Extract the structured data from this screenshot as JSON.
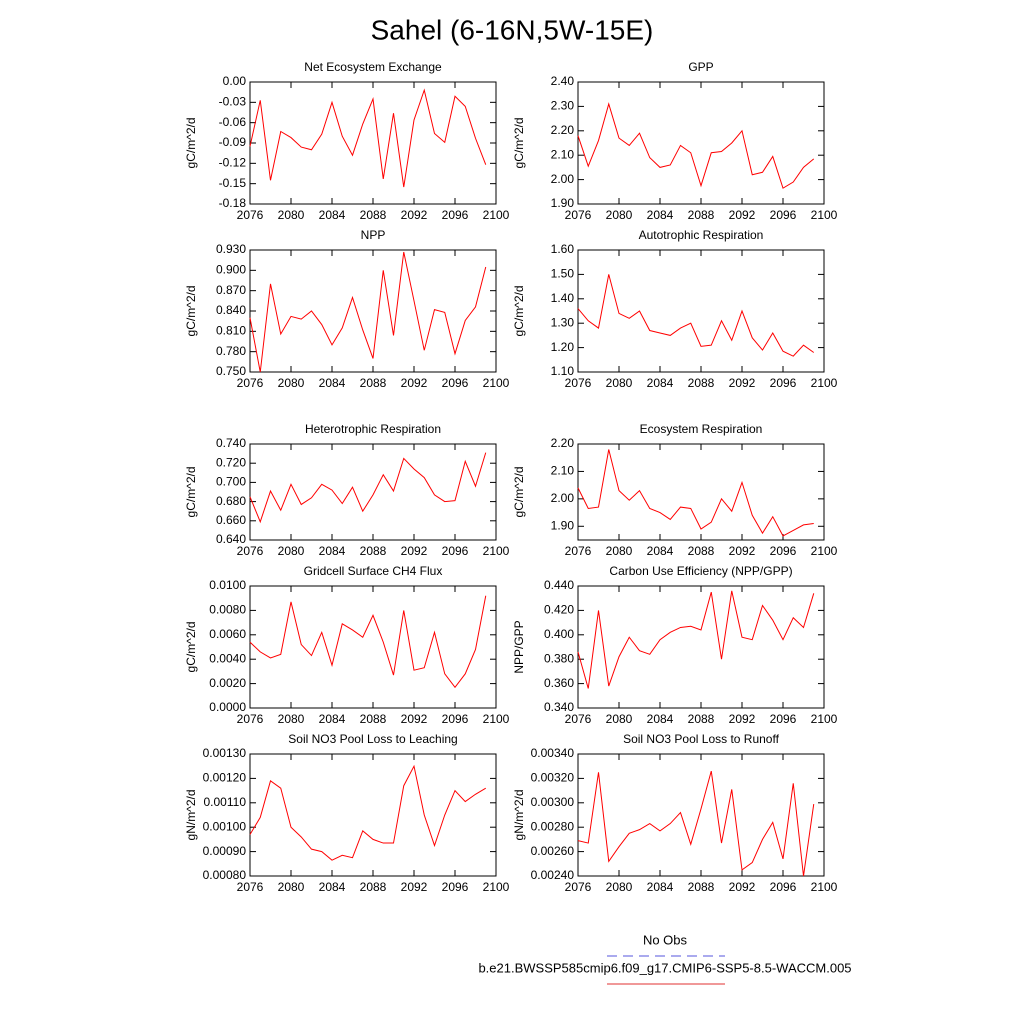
{
  "title": "Sahel (6-16N,5W-15E)",
  "legend": [
    {
      "name": "No Obs",
      "color": "#5555dd",
      "dash": true
    },
    {
      "name": "b.e21.BWSSP585cmip6.f09_g17.CMIP6-SSP5-8.5-WACCM.005",
      "color": "#e03030",
      "dash": false
    }
  ],
  "chart_data": [
    {
      "type": "line",
      "title": "Net Ecosystem Exchange",
      "ylabel": "gC/m^2/d",
      "color": "#ff0000",
      "x": [
        2076,
        2077,
        2078,
        2079,
        2080,
        2081,
        2082,
        2083,
        2084,
        2085,
        2086,
        2087,
        2088,
        2089,
        2090,
        2091,
        2092,
        2093,
        2094,
        2095,
        2096,
        2097,
        2098,
        2099
      ],
      "values": [
        -0.095,
        -0.027,
        -0.145,
        -0.073,
        -0.082,
        -0.096,
        -0.1,
        -0.077,
        -0.03,
        -0.08,
        -0.108,
        -0.062,
        -0.025,
        -0.143,
        -0.046,
        -0.155,
        -0.056,
        -0.012,
        -0.076,
        -0.089,
        -0.021,
        -0.036,
        -0.083,
        -0.122
      ],
      "xlim": [
        2076,
        2100
      ],
      "xticks": [
        2076,
        2080,
        2084,
        2088,
        2092,
        2096,
        2100
      ],
      "ylim": [
        -0.18,
        0
      ],
      "yticks": [
        {
          "value": -0.18,
          "label": "-0.18"
        },
        {
          "value": -0.15,
          "label": "-0.15"
        },
        {
          "value": -0.12,
          "label": "-0.12"
        },
        {
          "value": -0.09,
          "label": "-0.09"
        },
        {
          "value": -0.06,
          "label": "-0.06"
        },
        {
          "value": -0.03,
          "label": "-0.03"
        },
        {
          "value": 0,
          "label": "0.00"
        }
      ]
    },
    {
      "type": "line",
      "title": "GPP",
      "ylabel": "gC/m^2/d",
      "color": "#ff0000",
      "x": [
        2076,
        2077,
        2078,
        2079,
        2080,
        2081,
        2082,
        2083,
        2084,
        2085,
        2086,
        2087,
        2088,
        2089,
        2090,
        2091,
        2092,
        2093,
        2094,
        2095,
        2096,
        2097,
        2098,
        2099
      ],
      "values": [
        2.18,
        2.055,
        2.16,
        2.31,
        2.17,
        2.14,
        2.19,
        2.09,
        2.05,
        2.06,
        2.14,
        2.11,
        1.975,
        2.11,
        2.115,
        2.15,
        2.2,
        2.02,
        2.03,
        2.095,
        1.965,
        1.99,
        2.05,
        2.085
      ],
      "xlim": [
        2076,
        2100
      ],
      "xticks": [
        2076,
        2080,
        2084,
        2088,
        2092,
        2096,
        2100
      ],
      "ylim": [
        1.9,
        2.4
      ],
      "yticks": [
        {
          "value": 1.9,
          "label": "1.90"
        },
        {
          "value": 2.0,
          "label": "2.00"
        },
        {
          "value": 2.1,
          "label": "2.10"
        },
        {
          "value": 2.2,
          "label": "2.20"
        },
        {
          "value": 2.3,
          "label": "2.30"
        },
        {
          "value": 2.4,
          "label": "2.40"
        }
      ]
    },
    {
      "type": "line",
      "title": "NPP",
      "ylabel": "gC/m^2/d",
      "color": "#ff0000",
      "x": [
        2076,
        2077,
        2078,
        2079,
        2080,
        2081,
        2082,
        2083,
        2084,
        2085,
        2086,
        2087,
        2088,
        2089,
        2090,
        2091,
        2092,
        2093,
        2094,
        2095,
        2096,
        2097,
        2098,
        2099
      ],
      "values": [
        0.83,
        0.75,
        0.88,
        0.806,
        0.832,
        0.828,
        0.84,
        0.82,
        0.79,
        0.815,
        0.86,
        0.812,
        0.77,
        0.9,
        0.804,
        0.927,
        0.855,
        0.782,
        0.842,
        0.838,
        0.777,
        0.826,
        0.846,
        0.905
      ],
      "xlim": [
        2076,
        2100
      ],
      "xticks": [
        2076,
        2080,
        2084,
        2088,
        2092,
        2096,
        2100
      ],
      "ylim": [
        0.75,
        0.93
      ],
      "yticks": [
        {
          "value": 0.75,
          "label": "0.750"
        },
        {
          "value": 0.78,
          "label": "0.780"
        },
        {
          "value": 0.81,
          "label": "0.810"
        },
        {
          "value": 0.84,
          "label": "0.840"
        },
        {
          "value": 0.87,
          "label": "0.870"
        },
        {
          "value": 0.9,
          "label": "0.900"
        },
        {
          "value": 0.93,
          "label": "0.930"
        }
      ]
    },
    {
      "type": "line",
      "title": "Autotrophic Respiration",
      "ylabel": "gC/m^2/d",
      "color": "#ff0000",
      "x": [
        2076,
        2077,
        2078,
        2079,
        2080,
        2081,
        2082,
        2083,
        2084,
        2085,
        2086,
        2087,
        2088,
        2089,
        2090,
        2091,
        2092,
        2093,
        2094,
        2095,
        2096,
        2097,
        2098,
        2099
      ],
      "values": [
        1.36,
        1.31,
        1.28,
        1.5,
        1.34,
        1.32,
        1.35,
        1.27,
        1.26,
        1.25,
        1.28,
        1.3,
        1.205,
        1.21,
        1.31,
        1.23,
        1.35,
        1.24,
        1.19,
        1.26,
        1.185,
        1.165,
        1.21,
        1.18
      ],
      "xlim": [
        2076,
        2100
      ],
      "xticks": [
        2076,
        2080,
        2084,
        2088,
        2092,
        2096,
        2100
      ],
      "ylim": [
        1.1,
        1.6
      ],
      "yticks": [
        {
          "value": 1.1,
          "label": "1.10"
        },
        {
          "value": 1.2,
          "label": "1.20"
        },
        {
          "value": 1.3,
          "label": "1.30"
        },
        {
          "value": 1.4,
          "label": "1.40"
        },
        {
          "value": 1.5,
          "label": "1.50"
        },
        {
          "value": 1.6,
          "label": "1.60"
        }
      ]
    },
    {
      "type": "line",
      "title": "Heterotrophic Respiration",
      "ylabel": "gC/m^2/d",
      "color": "#ff0000",
      "x": [
        2076,
        2077,
        2078,
        2079,
        2080,
        2081,
        2082,
        2083,
        2084,
        2085,
        2086,
        2087,
        2088,
        2089,
        2090,
        2091,
        2092,
        2093,
        2094,
        2095,
        2096,
        2097,
        2098,
        2099
      ],
      "values": [
        0.685,
        0.659,
        0.691,
        0.671,
        0.698,
        0.677,
        0.684,
        0.698,
        0.692,
        0.678,
        0.695,
        0.67,
        0.687,
        0.708,
        0.691,
        0.725,
        0.714,
        0.705,
        0.687,
        0.68,
        0.681,
        0.722,
        0.696,
        0.731
      ],
      "xlim": [
        2076,
        2100
      ],
      "xticks": [
        2076,
        2080,
        2084,
        2088,
        2092,
        2096,
        2100
      ],
      "ylim": [
        0.64,
        0.74
      ],
      "yticks": [
        {
          "value": 0.64,
          "label": "0.640"
        },
        {
          "value": 0.66,
          "label": "0.660"
        },
        {
          "value": 0.68,
          "label": "0.680"
        },
        {
          "value": 0.7,
          "label": "0.700"
        },
        {
          "value": 0.72,
          "label": "0.720"
        },
        {
          "value": 0.74,
          "label": "0.740"
        }
      ]
    },
    {
      "type": "line",
      "title": "Ecosystem Respiration",
      "ylabel": "gC/m^2/d",
      "color": "#ff0000",
      "x": [
        2076,
        2077,
        2078,
        2079,
        2080,
        2081,
        2082,
        2083,
        2084,
        2085,
        2086,
        2087,
        2088,
        2089,
        2090,
        2091,
        2092,
        2093,
        2094,
        2095,
        2096,
        2097,
        2098,
        2099
      ],
      "values": [
        2.04,
        1.965,
        1.97,
        2.18,
        2.03,
        1.995,
        2.03,
        1.965,
        1.95,
        1.925,
        1.97,
        1.965,
        1.89,
        1.915,
        2.0,
        1.955,
        2.06,
        1.94,
        1.875,
        1.935,
        1.865,
        1.885,
        1.905,
        1.91
      ],
      "xlim": [
        2076,
        2100
      ],
      "xticks": [
        2076,
        2080,
        2084,
        2088,
        2092,
        2096,
        2100
      ],
      "ylim": [
        1.85,
        2.2
      ],
      "yticks": [
        {
          "value": 1.9,
          "label": "1.90"
        },
        {
          "value": 2.0,
          "label": "2.00"
        },
        {
          "value": 2.1,
          "label": "2.10"
        },
        {
          "value": 2.2,
          "label": "2.20"
        }
      ]
    },
    {
      "type": "line",
      "title": "Gridcell Surface CH4 Flux",
      "ylabel": "gC/m^2/d",
      "color": "#ff0000",
      "x": [
        2076,
        2077,
        2078,
        2079,
        2080,
        2081,
        2082,
        2083,
        2084,
        2085,
        2086,
        2087,
        2088,
        2089,
        2090,
        2091,
        2092,
        2093,
        2094,
        2095,
        2096,
        2097,
        2098,
        2099
      ],
      "values": [
        0.0054,
        0.0046,
        0.0041,
        0.0044,
        0.0087,
        0.0052,
        0.0043,
        0.0062,
        0.0035,
        0.0069,
        0.0064,
        0.0058,
        0.0076,
        0.0054,
        0.0027,
        0.008,
        0.0031,
        0.0033,
        0.0062,
        0.0028,
        0.0017,
        0.0028,
        0.0048,
        0.0092
      ],
      "xlim": [
        2076,
        2100
      ],
      "xticks": [
        2076,
        2080,
        2084,
        2088,
        2092,
        2096,
        2100
      ],
      "ylim": [
        0,
        0.01
      ],
      "yticks": [
        {
          "value": 0,
          "label": "0.0000"
        },
        {
          "value": 0.002,
          "label": "0.0020"
        },
        {
          "value": 0.004,
          "label": "0.0040"
        },
        {
          "value": 0.006,
          "label": "0.0060"
        },
        {
          "value": 0.008,
          "label": "0.0080"
        },
        {
          "value": 0.01,
          "label": "0.0100"
        }
      ]
    },
    {
      "type": "line",
      "title": "Carbon Use Efficiency (NPP/GPP)",
      "ylabel": "NPP/GPP",
      "color": "#ff0000",
      "x": [
        2076,
        2077,
        2078,
        2079,
        2080,
        2081,
        2082,
        2083,
        2084,
        2085,
        2086,
        2087,
        2088,
        2089,
        2090,
        2091,
        2092,
        2093,
        2094,
        2095,
        2096,
        2097,
        2098,
        2099
      ],
      "values": [
        0.386,
        0.356,
        0.42,
        0.358,
        0.382,
        0.398,
        0.387,
        0.384,
        0.396,
        0.402,
        0.406,
        0.407,
        0.404,
        0.435,
        0.38,
        0.436,
        0.398,
        0.396,
        0.424,
        0.412,
        0.396,
        0.414,
        0.406,
        0.434
      ],
      "xlim": [
        2076,
        2100
      ],
      "xticks": [
        2076,
        2080,
        2084,
        2088,
        2092,
        2096,
        2100
      ],
      "ylim": [
        0.34,
        0.44
      ],
      "yticks": [
        {
          "value": 0.34,
          "label": "0.340"
        },
        {
          "value": 0.36,
          "label": "0.360"
        },
        {
          "value": 0.38,
          "label": "0.380"
        },
        {
          "value": 0.4,
          "label": "0.400"
        },
        {
          "value": 0.42,
          "label": "0.420"
        },
        {
          "value": 0.44,
          "label": "0.440"
        }
      ]
    },
    {
      "type": "line",
      "title": "Soil NO3 Pool Loss to Leaching",
      "ylabel": "gN/m^2/d",
      "color": "#ff0000",
      "x": [
        2076,
        2077,
        2078,
        2079,
        2080,
        2081,
        2082,
        2083,
        2084,
        2085,
        2086,
        2087,
        2088,
        2089,
        2090,
        2091,
        2092,
        2093,
        2094,
        2095,
        2096,
        2097,
        2098,
        2099
      ],
      "values": [
        0.00097,
        0.00104,
        0.00119,
        0.00116,
        0.001,
        0.00096,
        0.00091,
        0.0009,
        0.000865,
        0.000885,
        0.000875,
        0.000985,
        0.00095,
        0.000935,
        0.000935,
        0.00117,
        0.00125,
        0.00105,
        0.000925,
        0.00105,
        0.00115,
        0.001105,
        0.001135,
        0.00116
      ],
      "xlim": [
        2076,
        2100
      ],
      "xticks": [
        2076,
        2080,
        2084,
        2088,
        2092,
        2096,
        2100
      ],
      "ylim": [
        0.0008,
        0.0013
      ],
      "yticks": [
        {
          "value": 0.0008,
          "label": "0.00080"
        },
        {
          "value": 0.0009,
          "label": "0.00090"
        },
        {
          "value": 0.001,
          "label": "0.00100"
        },
        {
          "value": 0.0011,
          "label": "0.00110"
        },
        {
          "value": 0.0012,
          "label": "0.00120"
        },
        {
          "value": 0.0013,
          "label": "0.00130"
        }
      ]
    },
    {
      "type": "line",
      "title": "Soil NO3 Pool Loss to Runoff",
      "ylabel": "gN/m^2/d",
      "color": "#ff0000",
      "x": [
        2076,
        2077,
        2078,
        2079,
        2080,
        2081,
        2082,
        2083,
        2084,
        2085,
        2086,
        2087,
        2088,
        2089,
        2090,
        2091,
        2092,
        2093,
        2094,
        2095,
        2096,
        2097,
        2098,
        2099
      ],
      "values": [
        0.00269,
        0.00267,
        0.00325,
        0.00252,
        0.00264,
        0.00275,
        0.00278,
        0.00283,
        0.00277,
        0.00283,
        0.00292,
        0.00266,
        0.00295,
        0.00326,
        0.00267,
        0.00311,
        0.00245,
        0.00251,
        0.0027,
        0.00284,
        0.00254,
        0.00316,
        0.0024,
        0.00299
      ],
      "xlim": [
        2076,
        2100
      ],
      "xticks": [
        2076,
        2080,
        2084,
        2088,
        2092,
        2096,
        2100
      ],
      "ylim": [
        0.0024,
        0.0034
      ],
      "yticks": [
        {
          "value": 0.0024,
          "label": "0.00240"
        },
        {
          "value": 0.0026,
          "label": "0.00260"
        },
        {
          "value": 0.0028,
          "label": "0.00280"
        },
        {
          "value": 0.003,
          "label": "0.00300"
        },
        {
          "value": 0.0032,
          "label": "0.00320"
        },
        {
          "value": 0.0034,
          "label": "0.00340"
        }
      ]
    }
  ]
}
